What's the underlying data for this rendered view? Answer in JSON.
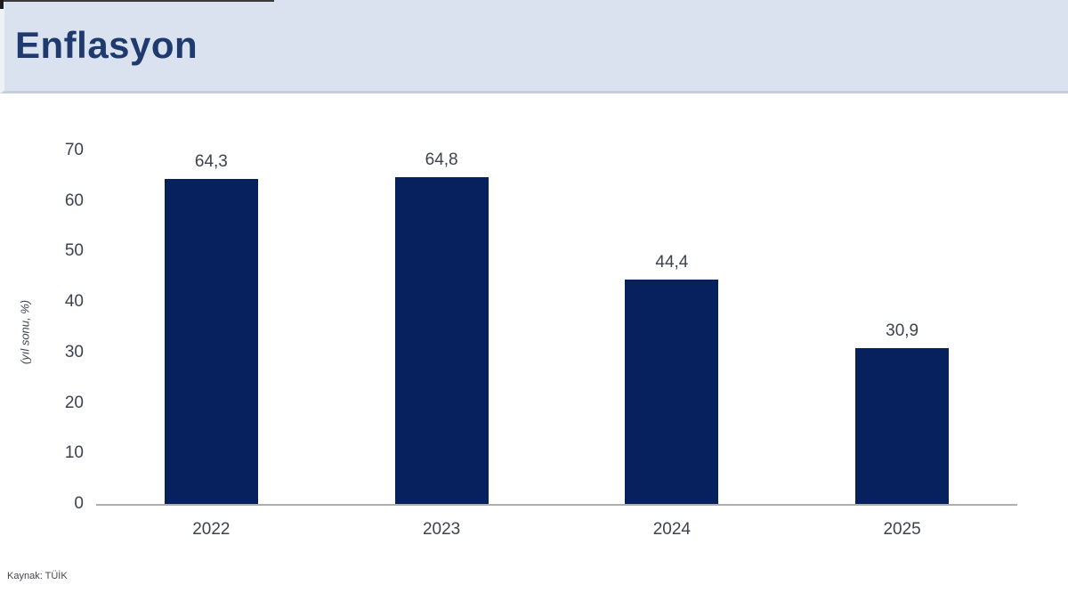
{
  "header": {
    "title": "Enflasyon"
  },
  "source_note": "Kaynak: TÜİK",
  "colors": {
    "header_bg": "#d9e2ee",
    "title_text": "#1e3a6e",
    "bar": "#07215f",
    "axis_line": "#aeaeae",
    "label_text": "#3d424d"
  },
  "chart_data": {
    "type": "bar",
    "title": "Enflasyon",
    "categories": [
      "2022",
      "2023",
      "2024",
      "2025"
    ],
    "values": [
      64.3,
      64.8,
      44.4,
      30.9
    ],
    "value_labels": [
      "64,3",
      "64,8",
      "44,4",
      "30,9"
    ],
    "xlabel": "",
    "ylabel": "(yıl sonu, %)",
    "ylim": [
      0,
      70
    ],
    "yticks": [
      0,
      10,
      20,
      30,
      40,
      50,
      60,
      70
    ],
    "grid": false,
    "legend": false,
    "bar_color": "#07215f",
    "source": "Kaynak: TÜİK"
  }
}
